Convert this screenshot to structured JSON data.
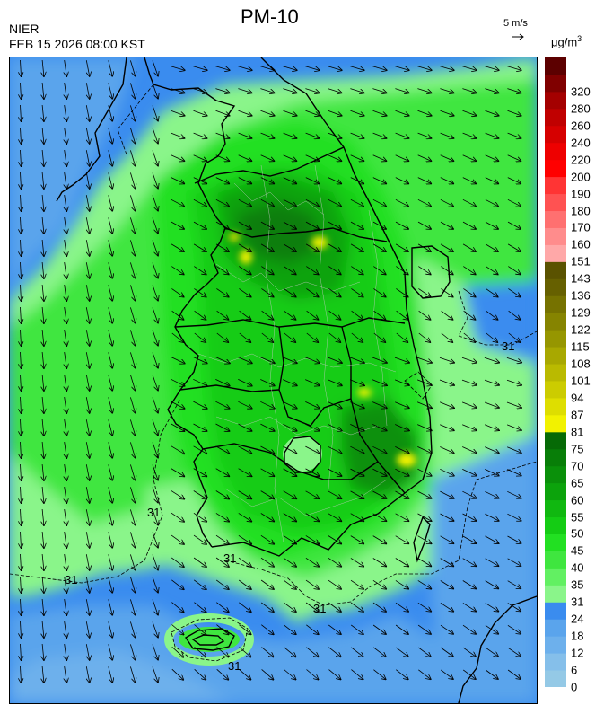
{
  "header": {
    "title": "PM-10",
    "agency": "NIER",
    "timestamp": "FEB 15 2026 08:00 KST",
    "reference_vector": {
      "label": "5 m/s",
      "icon": "arrow-right-icon"
    },
    "unit": {
      "base": "μg/m",
      "exponent": "3"
    }
  },
  "legend": {
    "bins": [
      {
        "label": "0",
        "color": "#94c9e6"
      },
      {
        "label": "6",
        "color": "#85bfea"
      },
      {
        "label": "12",
        "color": "#6db0ec"
      },
      {
        "label": "18",
        "color": "#5aa4ec"
      },
      {
        "label": "24",
        "color": "#3a8cef"
      },
      {
        "label": "31",
        "color": "#8af58a"
      },
      {
        "label": "35",
        "color": "#62f062"
      },
      {
        "label": "40",
        "color": "#3fe63f"
      },
      {
        "label": "45",
        "color": "#22e022"
      },
      {
        "label": "50",
        "color": "#14cc14"
      },
      {
        "label": "55",
        "color": "#10b810"
      },
      {
        "label": "60",
        "color": "#0ca30c"
      },
      {
        "label": "65",
        "color": "#0a900a"
      },
      {
        "label": "70",
        "color": "#087e08"
      },
      {
        "label": "75",
        "color": "#066a06"
      },
      {
        "label": "81",
        "color": "#f2f200"
      },
      {
        "label": "87",
        "color": "#dede00"
      },
      {
        "label": "94",
        "color": "#cccc00"
      },
      {
        "label": "101",
        "color": "#baba00"
      },
      {
        "label": "108",
        "color": "#a8a800"
      },
      {
        "label": "115",
        "color": "#969600"
      },
      {
        "label": "122",
        "color": "#868400"
      },
      {
        "label": "129",
        "color": "#767200"
      },
      {
        "label": "136",
        "color": "#666000"
      },
      {
        "label": "143",
        "color": "#5a5200"
      },
      {
        "label": "151",
        "color": "#ffa8a8"
      },
      {
        "label": "160",
        "color": "#ff8c8c"
      },
      {
        "label": "170",
        "color": "#ff7070"
      },
      {
        "label": "180",
        "color": "#ff5252"
      },
      {
        "label": "190",
        "color": "#ff3434"
      },
      {
        "label": "200",
        "color": "#ff0000"
      },
      {
        "label": "220",
        "color": "#ee0000"
      },
      {
        "label": "240",
        "color": "#d60000"
      },
      {
        "label": "260",
        "color": "#c00000"
      },
      {
        "label": "280",
        "color": "#a40000"
      },
      {
        "label": "320",
        "color": "#800000"
      },
      {
        "label": "",
        "color": "#5c0000"
      }
    ]
  },
  "map": {
    "contour_labels": [
      "31",
      "31",
      "31",
      "31",
      "31",
      "31"
    ],
    "hotspots": [
      "yellow",
      "yellow",
      "yellow",
      "yellow",
      "yellow"
    ]
  }
}
